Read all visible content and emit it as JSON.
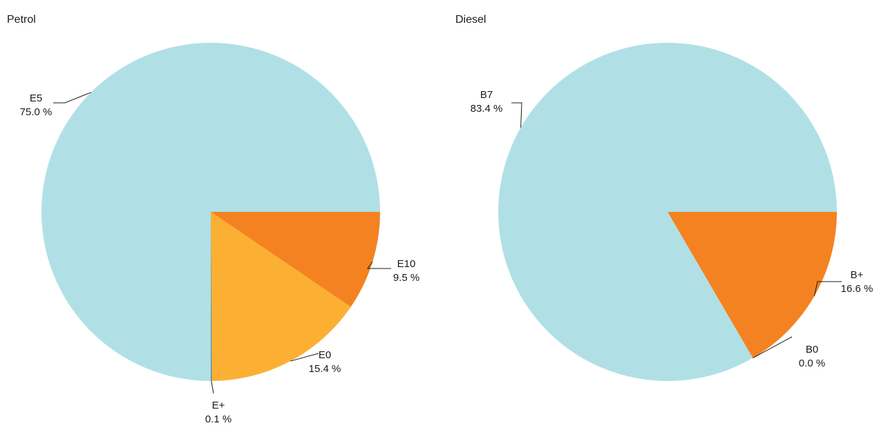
{
  "chart_data": [
    {
      "type": "pie",
      "title": "Petrol",
      "slices": [
        {
          "label": "E10",
          "value_text": "9.5 %",
          "value": 9.5,
          "color": "#f58220"
        },
        {
          "label": "E0",
          "value_text": "15.4 %",
          "value": 15.4,
          "color": "#fbb034"
        },
        {
          "label": "E+",
          "value_text": "0.1 %",
          "value": 0.1,
          "color": "#4a8fa8"
        },
        {
          "label": "E5",
          "value_text": "75.0 %",
          "value": 75.0,
          "color": "#b0e0e6"
        }
      ]
    },
    {
      "type": "pie",
      "title": "Diesel",
      "slices": [
        {
          "label": "B+",
          "value_text": "16.6 %",
          "value": 16.6,
          "color": "#f58220"
        },
        {
          "label": "B0",
          "value_text": "0.0 %",
          "value": 0.0,
          "color": "#fbb034"
        },
        {
          "label": "B7",
          "value_text": "83.4 %",
          "value": 83.4,
          "color": "#b0e0e6"
        }
      ]
    }
  ]
}
